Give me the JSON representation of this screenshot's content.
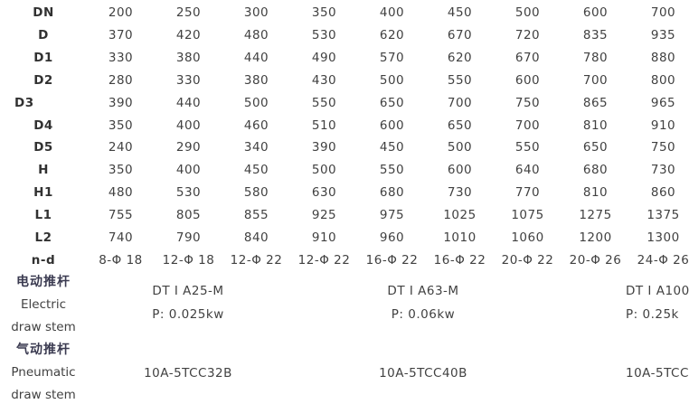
{
  "main_table": {
    "rows": [
      {
        "label": "DN",
        "values": [
          "200",
          "250",
          "300",
          "350",
          "400",
          "450",
          "500",
          "600",
          "700"
        ]
      },
      {
        "label": "D",
        "values": [
          "370",
          "420",
          "480",
          "530",
          "620",
          "670",
          "720",
          "835",
          "935"
        ]
      },
      {
        "label": "D1",
        "values": [
          "330",
          "380",
          "440",
          "490",
          "570",
          "620",
          "670",
          "780",
          "880"
        ]
      },
      {
        "label": "D2",
        "values": [
          "280",
          "330",
          "380",
          "430",
          "500",
          "550",
          "600",
          "700",
          "800"
        ]
      },
      {
        "label": "D3",
        "values": [
          "390",
          "440",
          "500",
          "550",
          "650",
          "700",
          "750",
          "865",
          "965"
        ],
        "label_offset": true
      },
      {
        "label": "D4",
        "values": [
          "350",
          "400",
          "460",
          "510",
          "600",
          "650",
          "700",
          "810",
          "910"
        ]
      },
      {
        "label": "D5",
        "values": [
          "240",
          "290",
          "340",
          "390",
          "450",
          "500",
          "550",
          "650",
          "750"
        ]
      },
      {
        "label": "H",
        "values": [
          "350",
          "400",
          "450",
          "500",
          "550",
          "600",
          "640",
          "680",
          "730"
        ]
      },
      {
        "label": "H1",
        "values": [
          "480",
          "530",
          "580",
          "630",
          "680",
          "730",
          "770",
          "810",
          "860"
        ]
      },
      {
        "label": "L1",
        "values": [
          "755",
          "805",
          "855",
          "925",
          "975",
          "1025",
          "1075",
          "1275",
          "1375"
        ]
      },
      {
        "label": "L2",
        "values": [
          "740",
          "790",
          "840",
          "910",
          "960",
          "1010",
          "1060",
          "1200",
          "1300"
        ]
      },
      {
        "label": "n-d",
        "values": [
          "8-Φ 18",
          "12-Φ 18",
          "12-Φ 22",
          "12-Φ 22",
          "16-Φ 22",
          "16-Φ 22",
          "20-Φ 22",
          "20-Φ 26",
          "24-Φ 26"
        ]
      }
    ]
  },
  "actuators": {
    "electric": {
      "label_cn": "电动推杆",
      "label_en_line1": "Electric",
      "label_en_line2": "draw stem",
      "cells": [
        {
          "model": "DT I A25-M",
          "power": "P: 0.025kw"
        },
        {
          "model": "DT I A63-M",
          "power": "P: 0.06kw"
        },
        {
          "model": "DT I A100",
          "power": "P: 0.25k"
        }
      ]
    },
    "pneumatic": {
      "label_cn": "气动推杆",
      "label_en_line1": "Pneumatic",
      "label_en_line2": "draw stem",
      "cells": [
        {
          "model": "10A-5TCC32B"
        },
        {
          "model": "10A-5TCC40B"
        },
        {
          "model": "10A-5TCC"
        }
      ]
    }
  },
  "colors": {
    "value_text": "#414141",
    "row_label_text": "#313131",
    "cjk_label_text": "#3a3a50",
    "background": "#ffffff"
  }
}
